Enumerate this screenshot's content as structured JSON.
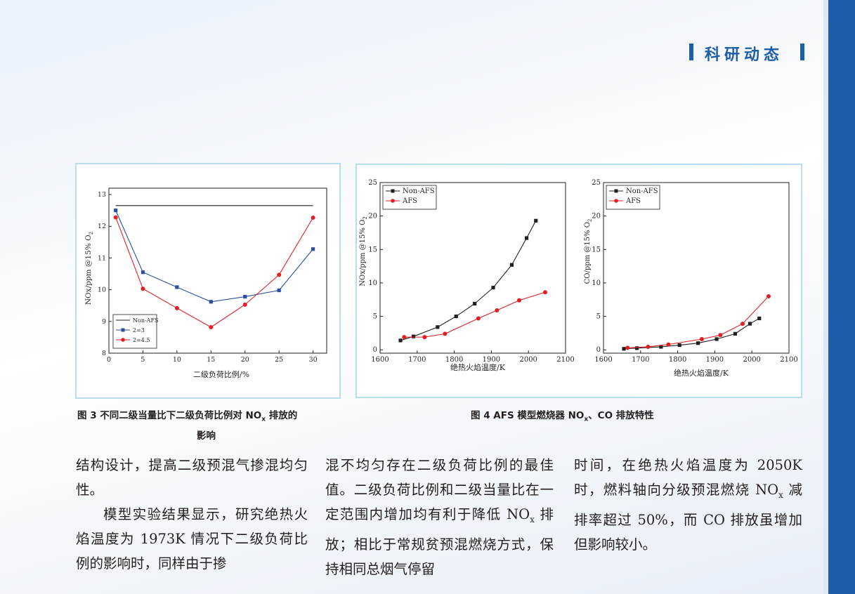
{
  "header": {
    "section_title": "科研动态"
  },
  "figure3": {
    "caption_line1": "图 3 不同二级当量比下二级负荷比例对 NO",
    "caption_sub": "x",
    "caption_line1_end": " 排放的",
    "caption_line2": "影响",
    "xlabel": "二级负荷比例/%",
    "ylabel": "NOx/ppm @15% O",
    "ylabel_sub": "2",
    "legend": [
      "Non-AFS",
      "2=3",
      "2=4.5"
    ],
    "colors": {
      "nonafs": "#231f20",
      "series1": "#2a4fa0",
      "series2": "#e31e24"
    }
  },
  "figure4": {
    "caption_a": "图 4 AFS 模型燃烧器 NO",
    "caption_sub": "x",
    "caption_b": "、CO 排放特性",
    "left_xlabel": "绝热火焰温度/K",
    "left_ylabel": "NOx/ppm @15% O",
    "left_ylabel_sub": "2",
    "right_xlabel": "绝热火焰温度/K",
    "right_ylabel": "CO/ppm @15% O",
    "right_ylabel_sub": "2",
    "legend": [
      "Non-AFS",
      "AFS"
    ]
  },
  "chart_data": [
    {
      "type": "line",
      "title": "",
      "xlabel": "二级负荷比例/%",
      "ylabel": "NOx/ppm @15% O2",
      "xlim": [
        0,
        32
      ],
      "ylim": [
        8,
        13.2
      ],
      "xticks": [
        0,
        5,
        10,
        15,
        20,
        25,
        30
      ],
      "yticks": [
        8,
        9,
        10,
        11,
        12,
        13
      ],
      "series": [
        {
          "name": "Non-AFS",
          "x": [
            1,
            30
          ],
          "y": [
            12.65,
            12.65
          ],
          "color": "#231f20",
          "marker": "none"
        },
        {
          "name": "2=3",
          "x": [
            1,
            5,
            10,
            15,
            20,
            25,
            30
          ],
          "y": [
            12.5,
            10.55,
            10.08,
            9.62,
            9.78,
            9.98,
            11.28
          ],
          "color": "#2a4fa0",
          "marker": "square"
        },
        {
          "name": "2=4.5",
          "x": [
            1,
            5,
            10,
            15,
            20,
            25,
            30
          ],
          "y": [
            12.28,
            10.03,
            9.42,
            8.82,
            9.53,
            10.47,
            12.27
          ],
          "color": "#e31e24",
          "marker": "circle"
        }
      ],
      "legend": "bottom-left",
      "grid": false
    },
    {
      "type": "line",
      "title": "",
      "xlabel": "绝热火焰温度/K",
      "ylabel": "NOx/ppm @15% O2",
      "xlim": [
        1600,
        2100
      ],
      "ylim": [
        -0.5,
        25
      ],
      "xticks": [
        1600,
        1700,
        1800,
        1900,
        2000,
        2100
      ],
      "yticks": [
        0,
        5,
        10,
        15,
        20,
        25
      ],
      "series": [
        {
          "name": "Non-AFS",
          "x": [
            1655,
            1690,
            1755,
            1805,
            1855,
            1905,
            1955,
            1995,
            2020
          ],
          "y": [
            1.4,
            2.0,
            3.4,
            5.0,
            6.9,
            9.3,
            12.7,
            16.7,
            19.3
          ],
          "color": "#231f20",
          "marker": "square"
        },
        {
          "name": "AFS",
          "x": [
            1665,
            1720,
            1775,
            1865,
            1915,
            1975,
            2045
          ],
          "y": [
            1.9,
            1.9,
            2.4,
            4.7,
            5.9,
            7.4,
            8.6
          ],
          "color": "#e31e24",
          "marker": "circle"
        }
      ],
      "legend": "top-left",
      "grid": false
    },
    {
      "type": "line",
      "title": "",
      "xlabel": "绝热火焰温度/K",
      "ylabel": "CO/ppm @15% O2",
      "xlim": [
        1600,
        2100
      ],
      "ylim": [
        -0.5,
        25
      ],
      "xticks": [
        1600,
        1700,
        1800,
        1900,
        2000,
        2100
      ],
      "yticks": [
        0,
        5,
        10,
        15,
        20,
        25
      ],
      "series": [
        {
          "name": "Non-AFS",
          "x": [
            1655,
            1690,
            1755,
            1805,
            1855,
            1905,
            1955,
            1995,
            2020
          ],
          "y": [
            0.15,
            0.25,
            0.45,
            0.7,
            1.0,
            1.6,
            2.4,
            3.9,
            4.7
          ],
          "color": "#231f20",
          "marker": "square"
        },
        {
          "name": "AFS",
          "x": [
            1665,
            1720,
            1775,
            1865,
            1915,
            1975,
            2045
          ],
          "y": [
            0.3,
            0.45,
            0.8,
            1.6,
            2.2,
            3.9,
            8.0
          ],
          "color": "#e31e24",
          "marker": "circle"
        }
      ],
      "legend": "top-left",
      "grid": false
    }
  ],
  "body": {
    "col1_p1": "结构设计，提高二级预混气掺混均匀性。",
    "col1_p2": "模型实验结果显示，研究绝热火焰温度为 1973K 情况下二级负荷比例的影响时，同样由于掺",
    "col2_a": "混不均匀存在二级负荷比例的最佳值。二级负荷比例和二级当量比在一定范围内增加均有利于降低 NO",
    "col2_sub": "x",
    "col2_b": " 排放；相比于常规贫预混燃烧方式，保持相同总烟气停留",
    "col3_a": "时间，在绝热火焰温度为 2050K 时，燃料轴向分级预混燃烧 NO",
    "col3_sub": "x",
    "col3_b": " 减排率超过 50%，而 CO 排放虽增加但影响较小。"
  }
}
